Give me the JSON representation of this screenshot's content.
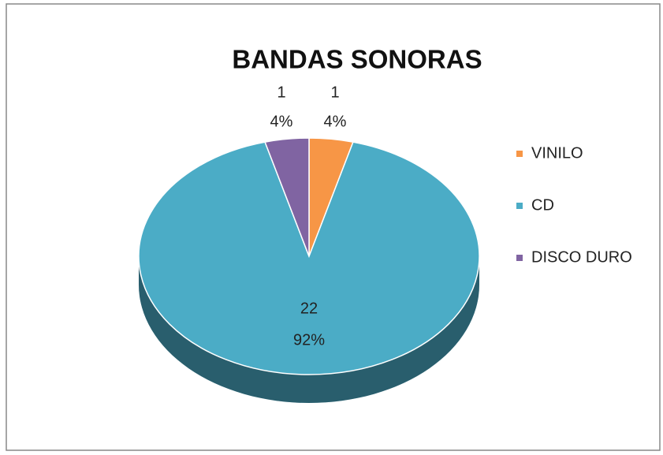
{
  "chart_data": {
    "type": "pie",
    "title": "BANDAS SONORAS",
    "categories": [
      "VINILO",
      "CD",
      "DISCO DURO"
    ],
    "values": [
      1,
      22,
      1
    ],
    "percent_labels": [
      "4%",
      "92%",
      "4%"
    ],
    "colors": [
      "#f79646",
      "#4bacc6",
      "#8064a2"
    ],
    "legend": "right"
  }
}
